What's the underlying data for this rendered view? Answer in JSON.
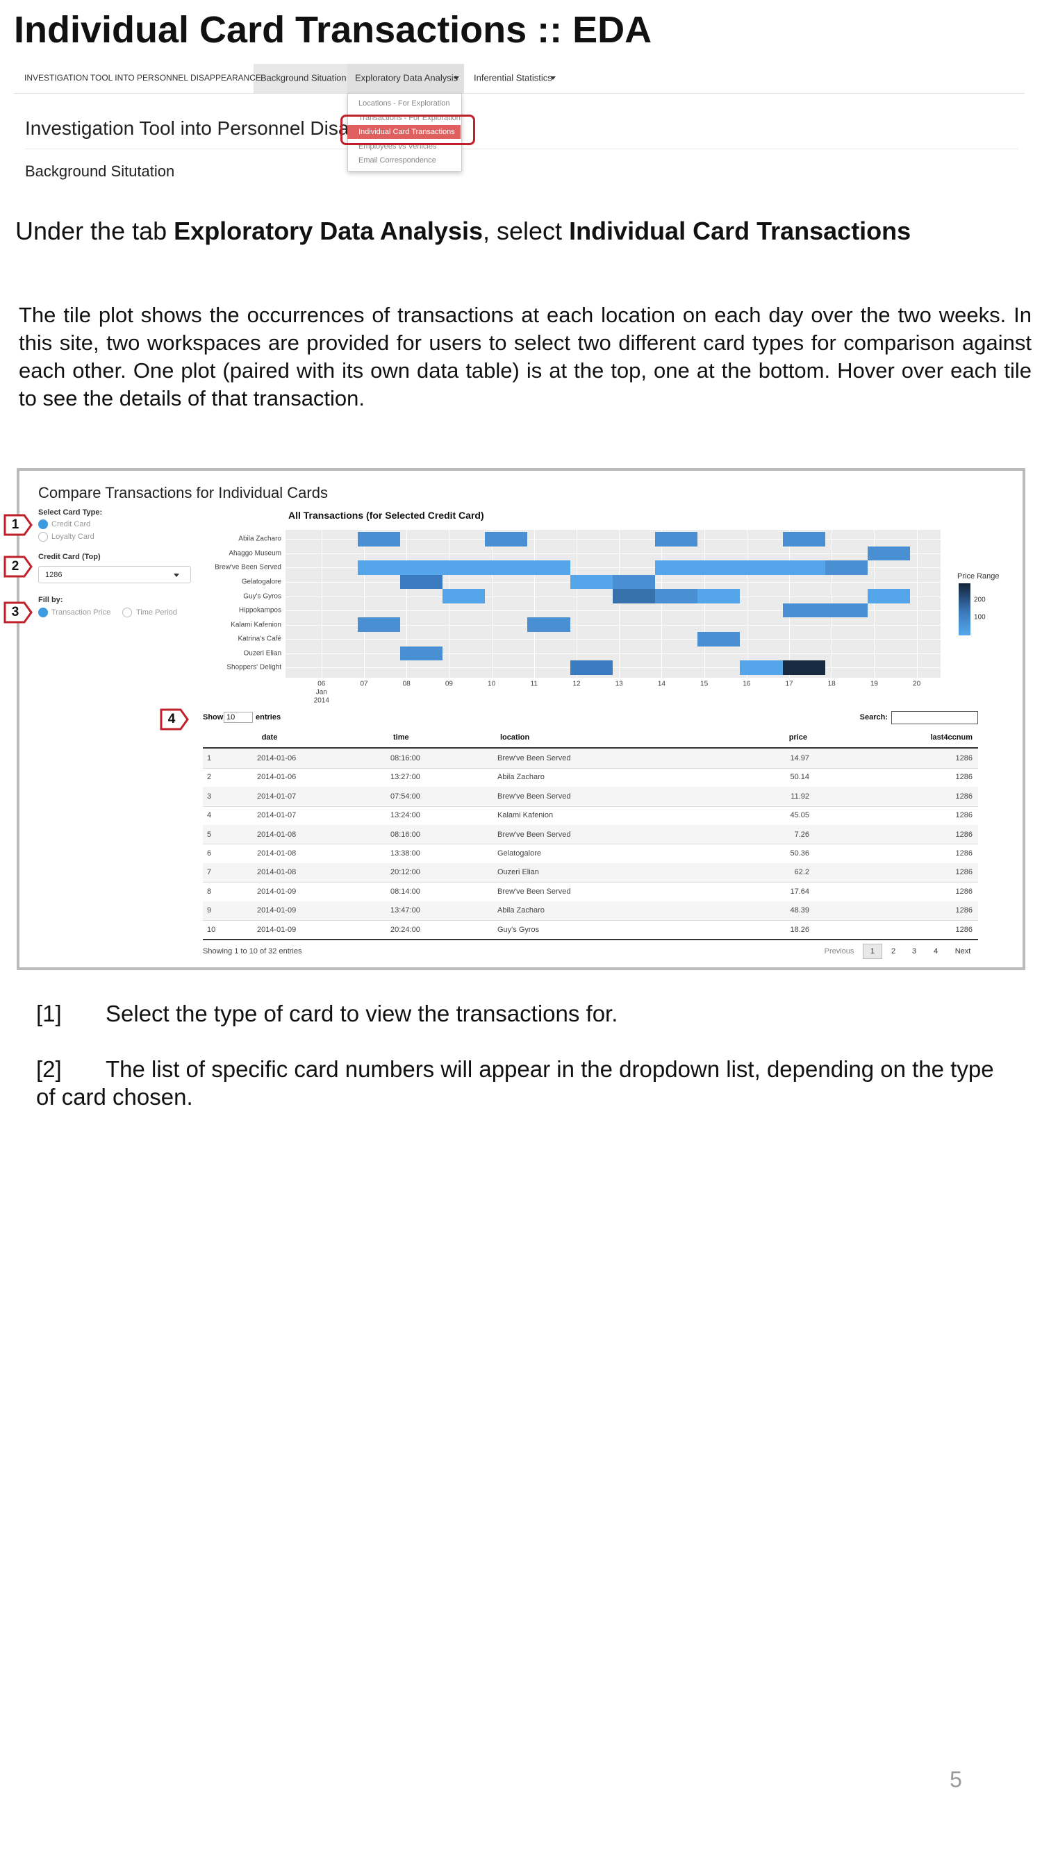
{
  "title": "Individual Card Transactions :: EDA",
  "nav": {
    "brand": "INVESTIGATION TOOL INTO PERSONNEL DISAPPEARANCE",
    "items": [
      "Background Situation",
      "Exploratory Data Analysis",
      "Inferential Statistics"
    ],
    "dropdown": [
      "Locations - For Exploration",
      "Transactions - For Exploration",
      "Individual Card Transactions",
      "Employees vs Vehicles",
      "Email Correspondence"
    ],
    "heading": "Investigation Tool into Personnel Disappearance",
    "subheading": "Background Situtation"
  },
  "instruction": [
    "Under the tab ",
    "Exploratory Data Analysis",
    ", select ",
    "Individual Card Transactions"
  ],
  "paragraph": "The tile plot shows the occurrences of transactions at each location on each day over the two weeks. In this site, two workspaces are provided for users to select two different card types for comparison against each other. One plot (paired with its own data table) is at the top, one at the bottom. Hover over each tile to see the details of that transaction.",
  "app": {
    "title": "Compare Transactions for Individual Cards",
    "card_type_label": "Select Card Type:",
    "card_types": [
      "Credit Card",
      "Loyalty Card"
    ],
    "card_label": "Credit Card (Top)",
    "card_value": 1286,
    "fill_label": "Fill by:",
    "fill_options": [
      "Transaction Price",
      "Time Period"
    ],
    "plot_title": "All Transactions (for Selected Credit Card)",
    "locations": [
      "Abila Zacharo",
      "Ahaggo Museum",
      "Brew've Been Served",
      "Gelatogalore",
      "Guy's Gyros",
      "Hippokampos",
      "Kalami Kafenion",
      "Katrina's Café",
      "Ouzeri Elian",
      "Shoppers' Delight"
    ],
    "days": [
      "06",
      "07",
      "08",
      "09",
      "10",
      "11",
      "12",
      "13",
      "14",
      "15",
      "16",
      "17",
      "18",
      "19",
      "20"
    ],
    "month": "Jan",
    "year": 2014,
    "legend_title": "Price Range",
    "legend_ticks": [
      200,
      100
    ],
    "table": {
      "show": "Show",
      "length": 10,
      "entries": "entries",
      "search": "Search:",
      "columns": [
        "date",
        "time",
        "location",
        "price",
        "last4ccnum"
      ],
      "rows": [
        [
          1,
          "2014-01-06",
          "08:16:00",
          "Brew've Been Served",
          14.97,
          1286
        ],
        [
          2,
          "2014-01-06",
          "13:27:00",
          "Abila Zacharo",
          50.14,
          1286
        ],
        [
          3,
          "2014-01-07",
          "07:54:00",
          "Brew've Been Served",
          11.92,
          1286
        ],
        [
          4,
          "2014-01-07",
          "13:24:00",
          "Kalami Kafenion",
          45.05,
          1286
        ],
        [
          5,
          "2014-01-08",
          "08:16:00",
          "Brew've Been Served",
          7.26,
          1286
        ],
        [
          6,
          "2014-01-08",
          "13:38:00",
          "Gelatogalore",
          50.36,
          1286
        ],
        [
          7,
          "2014-01-08",
          "20:12:00",
          "Ouzeri Elian",
          62.2,
          1286
        ],
        [
          8,
          "2014-01-09",
          "08:14:00",
          "Brew've Been Served",
          17.64,
          1286
        ],
        [
          9,
          "2014-01-09",
          "13:47:00",
          "Abila Zacharo",
          48.39,
          1286
        ],
        [
          10,
          "2014-01-09",
          "20:24:00",
          "Guy's Gyros",
          18.26,
          1286
        ]
      ],
      "info": "Showing 1 to 10 of 32 entries",
      "pages": [
        "Previous",
        1,
        2,
        3,
        4,
        "Next"
      ]
    }
  },
  "callouts": [
    1,
    2,
    3,
    4
  ],
  "notes": [
    {
      "marker": "[1]",
      "text": "Select the type of card to view the transactions for."
    },
    {
      "marker": "[2]",
      "text": "The list of specific card numbers will appear in the dropdown list, depending on the type of card chosen."
    }
  ],
  "page_number": 5
}
